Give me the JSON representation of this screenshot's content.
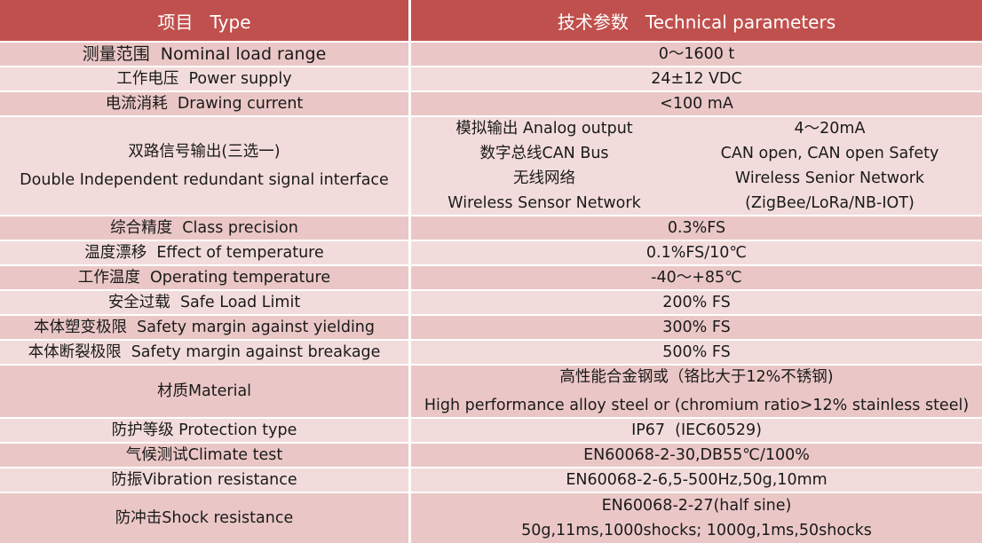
{
  "header": {
    "col_type": "项目   Type",
    "col_params": "技术参数   Technical parameters"
  },
  "rows": [
    {
      "type": "测量范围  Nominal load range",
      "value": "0～1600 t"
    },
    {
      "type": "工作电压  Power supply",
      "value": "24±12 VDC"
    },
    {
      "type": "电流消耗  Drawing current",
      "value": "<100 mA"
    },
    {
      "type_line1": "双路信号输出(三选一)",
      "type_line2": "Double Independent redundant signal interface",
      "signals": [
        {
          "left": "模拟输出 Analog output",
          "right": "4～20mA"
        },
        {
          "left": "数字总线CAN Bus",
          "right": "CAN open, CAN open Safety"
        },
        {
          "left": "无线网络",
          "right": "Wireless Senior Network"
        },
        {
          "left": "Wireless Sensor Network",
          "right": "(ZigBee/LoRa/NB-IOT)"
        }
      ]
    },
    {
      "type": "综合精度  Class precision",
      "value": "0.3%FS"
    },
    {
      "type": "温度漂移  Effect of temperature",
      "value": "0.1%FS/10℃"
    },
    {
      "type": "工作温度  Operating temperature",
      "value": "-40～+85℃"
    },
    {
      "type": "安全过载  Safe Load Limit",
      "value": "200% FS"
    },
    {
      "type": "本体塑变极限  Safety margin against yielding",
      "value": "300% FS"
    },
    {
      "type": "本体断裂极限  Safety margin against breakage",
      "value": "500% FS"
    },
    {
      "type": "材质Material",
      "value_line1": "高性能合金钢或（铬比大于12%不锈钢)",
      "value_line2": "High performance alloy steel or (chromium ratio>12% stainless steel)"
    },
    {
      "type": "防护等级 Protection type",
      "value": "IP67  (IEC60529)"
    },
    {
      "type": "气候测试Climate test",
      "value": "EN60068-2-30,DB55℃/100%"
    },
    {
      "type": "防振Vibration resistance",
      "value": "EN60068-2-6,5-500Hz,50g,10mm"
    },
    {
      "type": "防冲击Shock resistance",
      "value_line1": "EN60068-2-27(half sine)",
      "value_line2": "50g,11ms,1000shocks; 1000g,1ms,50shocks"
    }
  ],
  "colors": {
    "header_bg": "#c0504d",
    "row_dark": "#eac7c6",
    "row_light": "#f2dcdb"
  }
}
